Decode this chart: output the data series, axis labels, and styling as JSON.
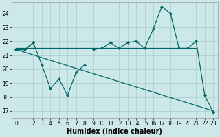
{
  "title": "",
  "xlabel": "Humidex (Indice chaleur)",
  "bg_color": "#cce8e8",
  "grid_color": "#aacccc",
  "line_color": "#006666",
  "xlim": [
    -0.5,
    23.5
  ],
  "ylim": [
    16.5,
    24.8
  ],
  "yticks": [
    17,
    18,
    19,
    20,
    21,
    22,
    23,
    24
  ],
  "xticks": [
    0,
    1,
    2,
    3,
    4,
    5,
    6,
    7,
    8,
    9,
    10,
    11,
    12,
    13,
    14,
    15,
    16,
    17,
    18,
    19,
    20,
    21,
    22,
    23
  ],
  "line1_y": [
    21.4,
    21.4,
    21.9,
    20.3,
    18.6,
    19.3,
    18.1,
    19.8,
    20.3,
    null,
    null,
    null,
    null,
    null,
    null,
    null,
    null,
    null,
    null,
    null,
    null,
    null,
    null,
    null
  ],
  "line2_y": [
    21.4,
    21.4,
    21.9,
    null,
    null,
    null,
    null,
    null,
    null,
    21.4,
    21.5,
    21.9,
    21.5,
    21.9,
    22.0,
    21.5,
    22.9,
    24.5,
    24.0,
    21.5,
    21.5,
    22.0,
    18.1,
    16.9
  ],
  "line3_x": [
    0,
    23
  ],
  "line3_y": [
    21.4,
    17.0
  ],
  "line4_x": [
    0,
    21
  ],
  "line4_y": [
    21.5,
    21.5
  ],
  "tick_fontsize": 5.5,
  "xlabel_fontsize": 7
}
